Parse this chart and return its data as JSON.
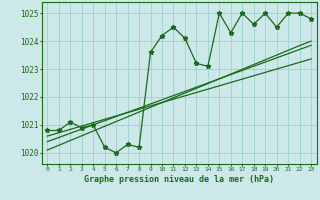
{
  "xlabel": "Graphe pression niveau de la mer (hPa)",
  "ylim": [
    1019.6,
    1025.4
  ],
  "xlim": [
    -0.5,
    23.5
  ],
  "yticks": [
    1020,
    1021,
    1022,
    1023,
    1024,
    1025
  ],
  "xticks": [
    0,
    1,
    2,
    3,
    4,
    5,
    6,
    7,
    8,
    9,
    10,
    11,
    12,
    13,
    14,
    15,
    16,
    17,
    18,
    19,
    20,
    21,
    22,
    23
  ],
  "bg_color": "#cce8e8",
  "grid_color": "#9fcfcf",
  "line_color": "#1a6b1a",
  "main_series": [
    1020.8,
    1020.8,
    1021.1,
    1020.9,
    1021.0,
    1020.2,
    1020.0,
    1020.3,
    1020.2,
    1023.6,
    1024.2,
    1024.5,
    1024.1,
    1023.2,
    1023.1,
    1025.0,
    1024.3,
    1025.0,
    1024.6,
    1025.0,
    1024.5,
    1025.0,
    1025.0,
    1024.8
  ],
  "trend1": [
    1020.1,
    1020.27,
    1020.44,
    1020.61,
    1020.78,
    1020.95,
    1021.12,
    1021.29,
    1021.46,
    1021.63,
    1021.8,
    1021.97,
    1022.14,
    1022.31,
    1022.48,
    1022.65,
    1022.82,
    1022.99,
    1023.16,
    1023.33,
    1023.5,
    1023.67,
    1023.84,
    1024.0
  ],
  "trend2": [
    1020.4,
    1020.55,
    1020.7,
    1020.85,
    1021.0,
    1021.15,
    1021.3,
    1021.45,
    1021.6,
    1021.75,
    1021.9,
    1022.05,
    1022.2,
    1022.35,
    1022.5,
    1022.65,
    1022.8,
    1022.95,
    1023.1,
    1023.25,
    1023.4,
    1023.55,
    1023.7,
    1023.85
  ],
  "trend3": [
    1020.6,
    1020.72,
    1020.84,
    1020.96,
    1021.08,
    1021.2,
    1021.32,
    1021.44,
    1021.56,
    1021.68,
    1021.8,
    1021.92,
    1022.04,
    1022.16,
    1022.28,
    1022.4,
    1022.52,
    1022.64,
    1022.76,
    1022.88,
    1023.0,
    1023.12,
    1023.24,
    1023.36
  ]
}
